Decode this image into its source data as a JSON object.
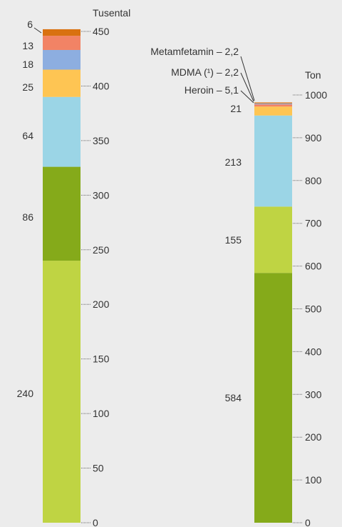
{
  "chart_data": [
    {
      "type": "bar",
      "stacked": true,
      "unit_label": "Tusental",
      "ylim": [
        0,
        450
      ],
      "ticks": [
        0,
        50,
        100,
        150,
        200,
        250,
        300,
        350,
        400,
        450
      ],
      "segments": [
        {
          "value": 240,
          "label": "240",
          "color": "#bfd443"
        },
        {
          "value": 86,
          "label": "86",
          "color": "#85aa1a"
        },
        {
          "value": 64,
          "label": "64",
          "color": "#9bd5e6"
        },
        {
          "value": 25,
          "label": "25",
          "color": "#fec553"
        },
        {
          "value": 18,
          "label": "18",
          "color": "#8daee0"
        },
        {
          "value": 13,
          "label": "13",
          "color": "#f28365"
        },
        {
          "value": 6,
          "label": "6",
          "color": "#d97110"
        }
      ]
    },
    {
      "type": "bar",
      "stacked": true,
      "unit_label": "Ton",
      "ylim": [
        0,
        1000
      ],
      "ticks": [
        0,
        100,
        200,
        300,
        400,
        500,
        600,
        700,
        800,
        900,
        1000
      ],
      "segments": [
        {
          "value": 584,
          "label": "584",
          "color": "#85aa1a"
        },
        {
          "value": 155,
          "label": "155",
          "color": "#bfd443"
        },
        {
          "value": 213,
          "label": "213",
          "color": "#9bd5e6"
        },
        {
          "value": 21,
          "label": "21",
          "color": "#fec553"
        },
        {
          "value": 5.1,
          "label": "Heroin – 5,1",
          "color": "#f28365"
        },
        {
          "value": 2.2,
          "label": "MDMA (¹) – 2,2",
          "color": "#8daee0"
        },
        {
          "value": 2.2,
          "label": "Metamfetamin – 2,2",
          "color": "#d97110"
        }
      ]
    }
  ]
}
